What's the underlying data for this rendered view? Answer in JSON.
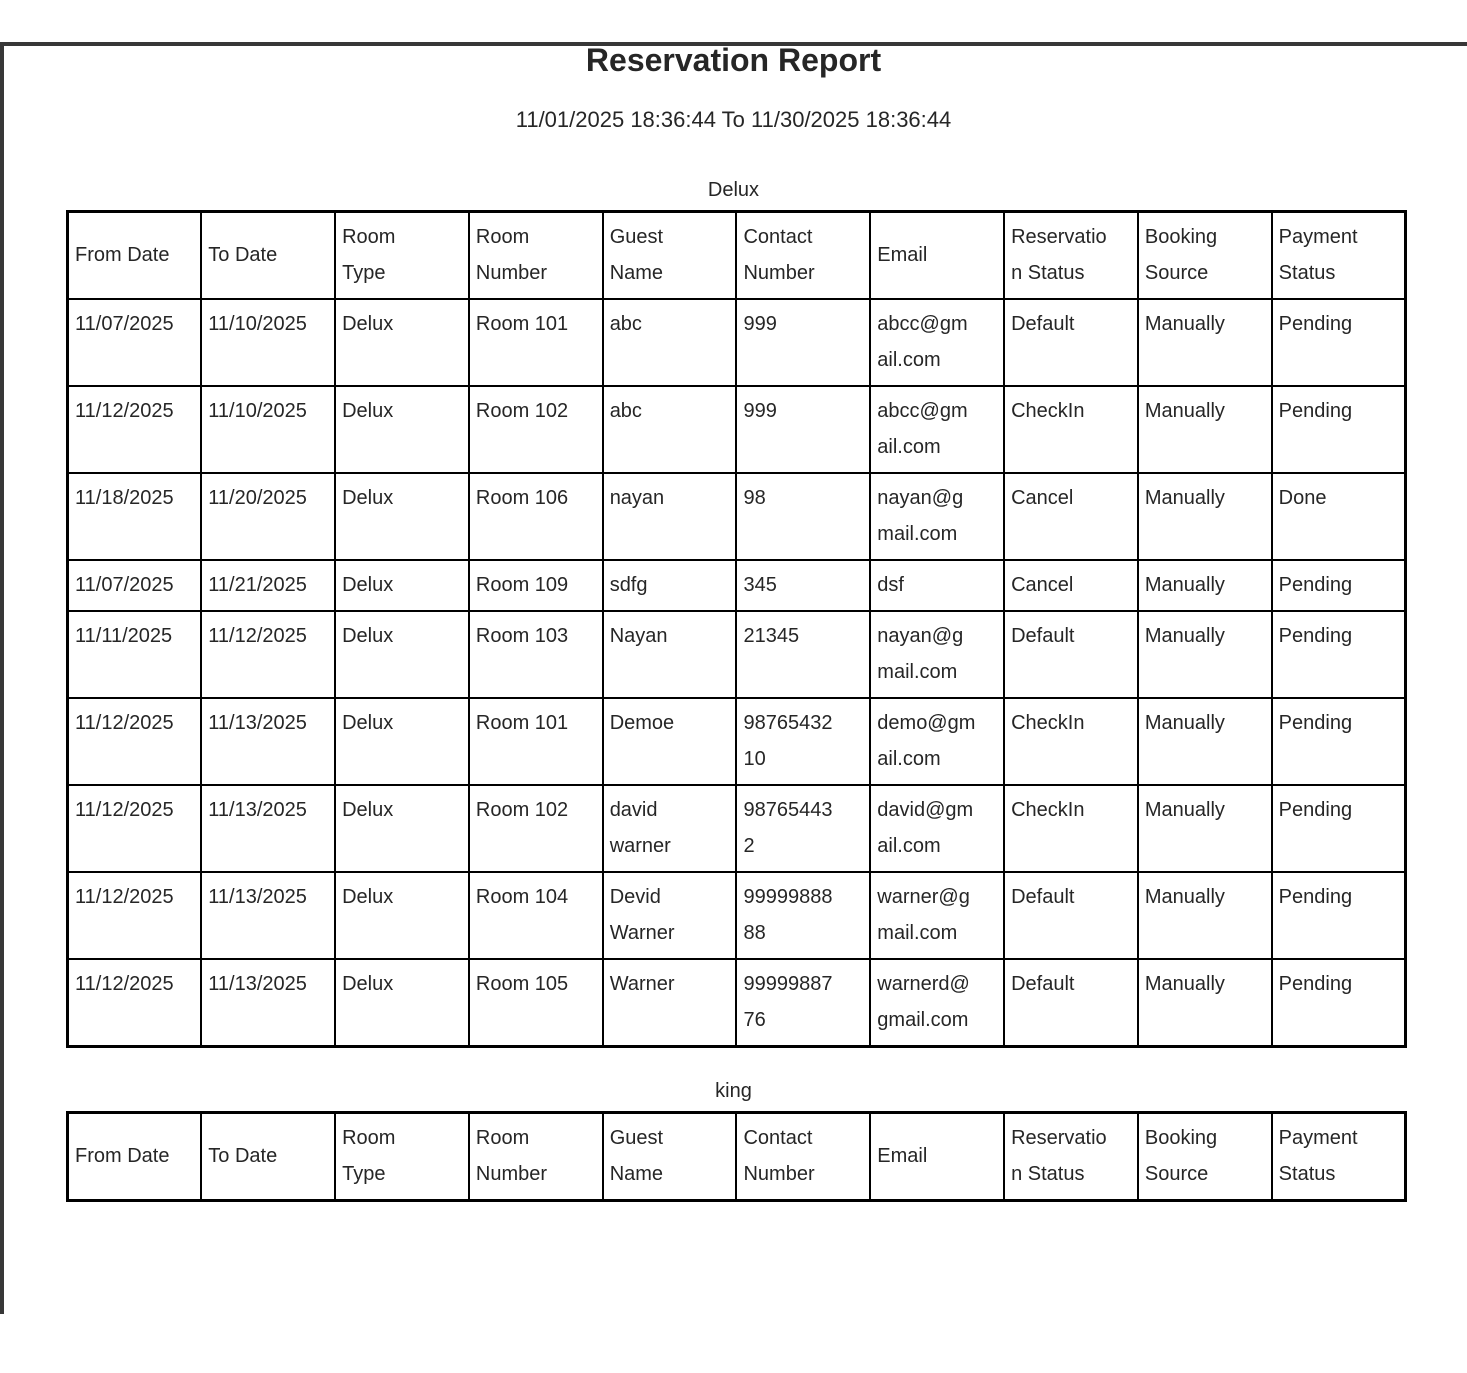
{
  "report": {
    "title": "Reservation Report",
    "date_range": "11/01/2025 18:36:44 To 11/30/2025 18:36:44"
  },
  "colors": {
    "window_edge": "#373737",
    "table_border": "#000000",
    "text": "#262626",
    "page_background": "#ffffff"
  },
  "columns": [
    "From Date",
    "To Date",
    "Room Type",
    "Room Number",
    "Guest Name",
    "Contact Number",
    "Email",
    "Reservation Status",
    "Booking Source",
    "Payment Status"
  ],
  "sections": [
    {
      "title": "Delux",
      "rows": [
        [
          "11/07/2025",
          "11/10/2025",
          "Delux",
          "Room 101",
          "abc",
          "999",
          "abcc@gmail.com",
          "Default",
          "Manually",
          "Pending"
        ],
        [
          "11/12/2025",
          "11/10/2025",
          "Delux",
          "Room 102",
          "abc",
          "999",
          "abcc@gmail.com",
          "CheckIn",
          "Manually",
          "Pending"
        ],
        [
          "11/18/2025",
          "11/20/2025",
          "Delux",
          "Room 106",
          "nayan",
          "98",
          "nayan@gmail.com",
          "Cancel",
          "Manually",
          "Done"
        ],
        [
          "11/07/2025",
          "11/21/2025",
          "Delux",
          "Room 109",
          "sdfg",
          "345",
          "dsf",
          "Cancel",
          "Manually",
          "Pending"
        ],
        [
          "11/11/2025",
          "11/12/2025",
          "Delux",
          "Room 103",
          "Nayan",
          "21345",
          "nayan@gmail.com",
          "Default",
          "Manually",
          "Pending"
        ],
        [
          "11/12/2025",
          "11/13/2025",
          "Delux",
          "Room 101",
          "Demoe",
          "9876543210",
          "demo@gmail.com",
          "CheckIn",
          "Manually",
          "Pending"
        ],
        [
          "11/12/2025",
          "11/13/2025",
          "Delux",
          "Room 102",
          "david warner",
          "987654432",
          "david@gmail.com",
          "CheckIn",
          "Manually",
          "Pending"
        ],
        [
          "11/12/2025",
          "11/13/2025",
          "Delux",
          "Room 104",
          "Devid Warner",
          "9999988888",
          "warner@gmail.com",
          "Default",
          "Manually",
          "Pending"
        ],
        [
          "11/12/2025",
          "11/13/2025",
          "Delux",
          "Room 105",
          "Warner",
          "9999988776",
          "warnerd@gmail.com",
          "Default",
          "Manually",
          "Pending"
        ]
      ]
    },
    {
      "title": "king",
      "rows": []
    }
  ]
}
